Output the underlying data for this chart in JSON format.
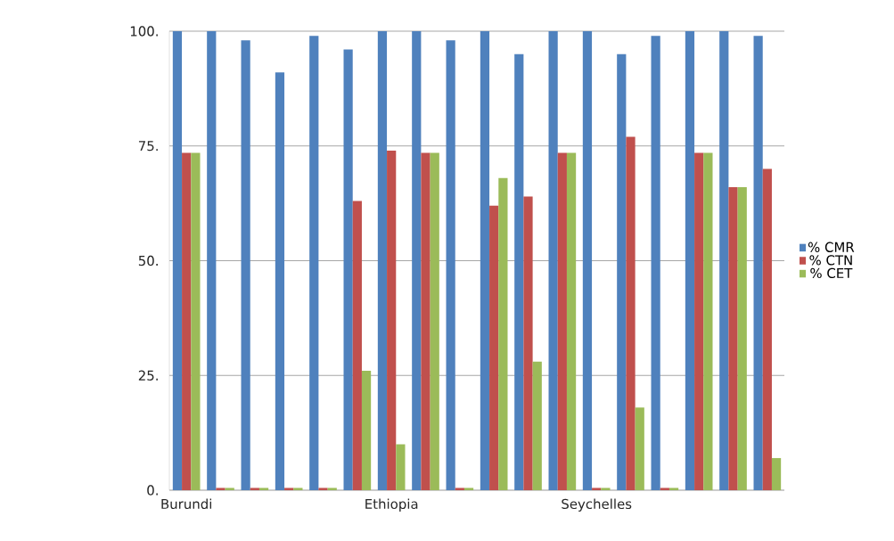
{
  "chart_data": {
    "type": "bar",
    "categories": [
      "Burundi",
      null,
      null,
      null,
      null,
      null,
      "Ethiopia",
      null,
      null,
      null,
      null,
      null,
      "Seychelles",
      null,
      null,
      null,
      null,
      null
    ],
    "series": [
      {
        "name": "% CMR",
        "color": "#4f81bd",
        "values": [
          100,
          100,
          98,
          91,
          99,
          96,
          100,
          100,
          98,
          100,
          95,
          100,
          100,
          95,
          99,
          100,
          100,
          99
        ]
      },
      {
        "name": "% CTN",
        "color": "#c0504d",
        "values": [
          73.5,
          0.5,
          0.5,
          0.5,
          0.5,
          63,
          74,
          73.5,
          0.5,
          62,
          64,
          73.5,
          0.5,
          77,
          0.5,
          73.5,
          66,
          70
        ]
      },
      {
        "name": "% CET",
        "color": "#9bbb59",
        "values": [
          73.5,
          0.5,
          0.5,
          0.5,
          0.5,
          26,
          10,
          73.5,
          0.5,
          68,
          28,
          73.5,
          0.5,
          18,
          0.5,
          73.5,
          66,
          7
        ]
      }
    ],
    "ylim": [
      0,
      100
    ],
    "yticks": [
      {
        "value": 0,
        "label": "0."
      },
      {
        "value": 25,
        "label": "25."
      },
      {
        "value": 50,
        "label": "50."
      },
      {
        "value": 75,
        "label": "75."
      },
      {
        "value": 100,
        "label": "100."
      }
    ],
    "grid": "y",
    "legend": "right"
  }
}
